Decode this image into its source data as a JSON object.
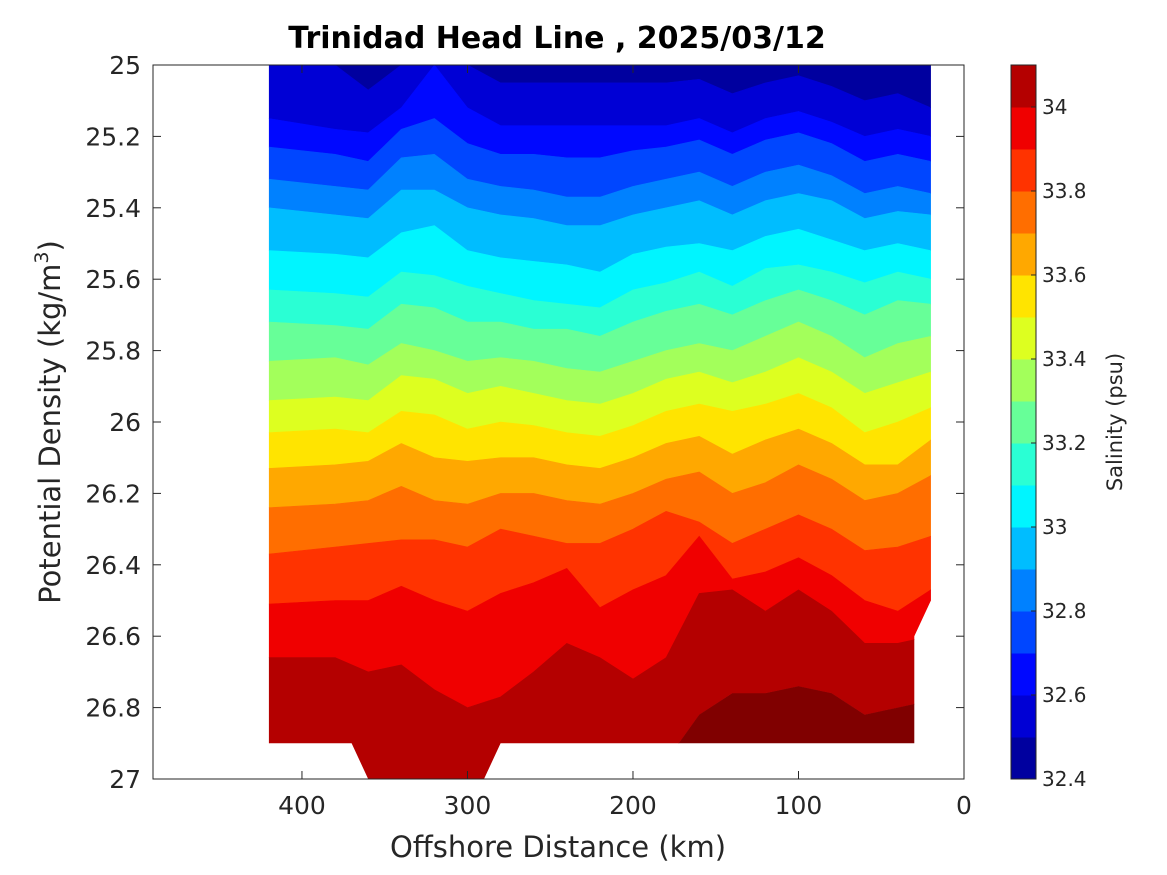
{
  "chart_data": {
    "type": "contour",
    "title": "Trinidad Head Line , 2025/03/12",
    "xlabel": "Offshore Distance (km)",
    "ylabel_main": "Potential Density (kg/m",
    "ylabel_sup": "3",
    "ylabel_close": ")",
    "xlim": [
      490,
      0
    ],
    "x_reversed": true,
    "xticks": [
      400,
      300,
      200,
      100,
      0
    ],
    "xtick_labels": [
      "400",
      "300",
      "200",
      "100",
      "0"
    ],
    "ylim": [
      25,
      27
    ],
    "y_reversed": true,
    "yticks": [
      25,
      25.2,
      25.4,
      25.6,
      25.8,
      26,
      26.2,
      26.4,
      26.6,
      26.8,
      27
    ],
    "ytick_labels": [
      "25",
      "25.2",
      "25.4",
      "25.6",
      "25.8",
      "26",
      "26.2",
      "26.4",
      "26.6",
      "26.8",
      "27"
    ],
    "data_extent_x": [
      420,
      20
    ],
    "colorbar": {
      "label": "Salinity (psu)",
      "range": [
        32.4,
        34.1
      ],
      "levels": [
        32.4,
        32.5,
        32.6,
        32.7,
        32.8,
        32.9,
        33.0,
        33.1,
        33.2,
        33.3,
        33.4,
        33.5,
        33.6,
        33.7,
        33.8,
        33.9,
        34.0,
        34.1
      ],
      "colors": [
        "#00009f",
        "#0000d5",
        "#0008ff",
        "#0046ff",
        "#0081ff",
        "#00bdff",
        "#00f5ff",
        "#2affd4",
        "#67ff98",
        "#a3ff5b",
        "#ddff20",
        "#ffe400",
        "#ffa800",
        "#ff6e00",
        "#ff3300",
        "#f00000",
        "#b40000",
        "#800000"
      ],
      "tick_values": [
        32.4,
        32.6,
        32.8,
        33,
        33.2,
        33.4,
        33.6,
        33.8,
        34
      ],
      "tick_labels": [
        "32.4",
        "32.6",
        "32.8",
        "33",
        "33.2",
        "33.4",
        "33.6",
        "33.8",
        "34"
      ]
    },
    "stations_x": [
      420,
      380,
      360,
      340,
      320,
      300,
      280,
      260,
      240,
      220,
      200,
      180,
      160,
      140,
      120,
      100,
      80,
      60,
      40,
      20
    ],
    "contour_boundaries": [
      {
        "upper": 32.6,
        "y": [
          25.0,
          25.0,
          25.07,
          25.0,
          25.0,
          25.0,
          25.05,
          25.05,
          25.05,
          25.05,
          25.05,
          25.05,
          25.04,
          25.08,
          25.05,
          25.03,
          25.06,
          25.1,
          25.08,
          25.12
        ]
      },
      {
        "upper": 32.7,
        "y": [
          25.15,
          25.18,
          25.19,
          25.12,
          25.0,
          25.12,
          25.17,
          25.17,
          25.17,
          25.17,
          25.17,
          25.17,
          25.15,
          25.19,
          25.15,
          25.13,
          25.16,
          25.2,
          25.18,
          25.2
        ]
      },
      {
        "upper": 32.8,
        "y": [
          25.23,
          25.25,
          25.27,
          25.18,
          25.15,
          25.22,
          25.25,
          25.25,
          25.26,
          25.26,
          25.24,
          25.23,
          25.21,
          25.25,
          25.21,
          25.19,
          25.22,
          25.27,
          25.25,
          25.27
        ]
      },
      {
        "upper": 32.9,
        "y": [
          25.32,
          25.34,
          25.35,
          25.26,
          25.25,
          25.32,
          25.34,
          25.35,
          25.37,
          25.37,
          25.34,
          25.32,
          25.3,
          25.34,
          25.3,
          25.28,
          25.31,
          25.36,
          25.34,
          25.36
        ]
      },
      {
        "upper": 33.0,
        "y": [
          25.4,
          25.42,
          25.43,
          25.35,
          25.35,
          25.4,
          25.42,
          25.43,
          25.45,
          25.45,
          25.42,
          25.4,
          25.38,
          25.42,
          25.38,
          25.36,
          25.38,
          25.43,
          25.41,
          25.42
        ]
      },
      {
        "upper": 33.1,
        "y": [
          25.52,
          25.53,
          25.54,
          25.47,
          25.45,
          25.52,
          25.54,
          25.55,
          25.56,
          25.58,
          25.53,
          25.51,
          25.5,
          25.52,
          25.48,
          25.46,
          25.49,
          25.52,
          25.5,
          25.52
        ]
      },
      {
        "upper": 33.2,
        "y": [
          25.63,
          25.64,
          25.65,
          25.58,
          25.59,
          25.62,
          25.64,
          25.66,
          25.67,
          25.68,
          25.63,
          25.61,
          25.58,
          25.62,
          25.57,
          25.56,
          25.58,
          25.61,
          25.58,
          25.6
        ]
      },
      {
        "upper": 33.3,
        "y": [
          25.72,
          25.73,
          25.74,
          25.67,
          25.68,
          25.72,
          25.72,
          25.74,
          25.74,
          25.76,
          25.72,
          25.69,
          25.67,
          25.7,
          25.66,
          25.63,
          25.66,
          25.7,
          25.66,
          25.67
        ]
      },
      {
        "upper": 33.4,
        "y": [
          25.83,
          25.82,
          25.84,
          25.78,
          25.8,
          25.83,
          25.82,
          25.83,
          25.85,
          25.86,
          25.83,
          25.8,
          25.78,
          25.8,
          25.76,
          25.72,
          25.76,
          25.82,
          25.78,
          25.76
        ]
      },
      {
        "upper": 33.5,
        "y": [
          25.94,
          25.93,
          25.94,
          25.87,
          25.88,
          25.92,
          25.9,
          25.92,
          25.94,
          25.95,
          25.92,
          25.88,
          25.86,
          25.89,
          25.86,
          25.82,
          25.86,
          25.92,
          25.89,
          25.86
        ]
      },
      {
        "upper": 33.6,
        "y": [
          26.03,
          26.02,
          26.03,
          25.97,
          25.98,
          26.02,
          26.0,
          26.01,
          26.03,
          26.04,
          26.01,
          25.97,
          25.95,
          25.97,
          25.95,
          25.92,
          25.96,
          26.03,
          26.0,
          25.96
        ]
      },
      {
        "upper": 33.7,
        "y": [
          26.13,
          26.12,
          26.11,
          26.06,
          26.1,
          26.11,
          26.1,
          26.1,
          26.12,
          26.13,
          26.1,
          26.06,
          26.04,
          26.09,
          26.05,
          26.02,
          26.06,
          26.12,
          26.12,
          26.05
        ]
      },
      {
        "upper": 33.8,
        "y": [
          26.24,
          26.23,
          26.22,
          26.18,
          26.22,
          26.23,
          26.2,
          26.2,
          26.22,
          26.23,
          26.2,
          26.16,
          26.14,
          26.2,
          26.17,
          26.12,
          26.16,
          26.22,
          26.2,
          26.15
        ]
      },
      {
        "upper": 33.9,
        "y": [
          26.37,
          26.35,
          26.34,
          26.33,
          26.33,
          26.35,
          26.3,
          26.32,
          26.34,
          26.34,
          26.3,
          26.25,
          26.28,
          26.34,
          26.3,
          26.26,
          26.3,
          26.36,
          26.35,
          26.32
        ]
      },
      {
        "upper": 34.0,
        "y": [
          26.51,
          26.5,
          26.5,
          26.46,
          26.5,
          26.53,
          26.48,
          26.45,
          26.41,
          26.52,
          26.47,
          26.43,
          26.32,
          26.44,
          26.42,
          26.38,
          26.43,
          26.5,
          26.53,
          26.47
        ]
      },
      {
        "upper": 34.1,
        "y": [
          26.66,
          26.66,
          26.7,
          26.68,
          26.75,
          26.8,
          26.77,
          26.7,
          26.62,
          26.66,
          26.72,
          26.66,
          26.48,
          26.47,
          26.53,
          26.47,
          26.53,
          26.62,
          26.62,
          26.6
        ]
      },
      {
        "upper": 34.2,
        "y": [
          27.0,
          27.0,
          27.0,
          27.0,
          27.0,
          27.0,
          27.0,
          27.0,
          27.0,
          27.0,
          27.0,
          26.95,
          26.82,
          26.76,
          26.76,
          26.74,
          26.76,
          26.82,
          26.8,
          26.78
        ]
      }
    ]
  }
}
